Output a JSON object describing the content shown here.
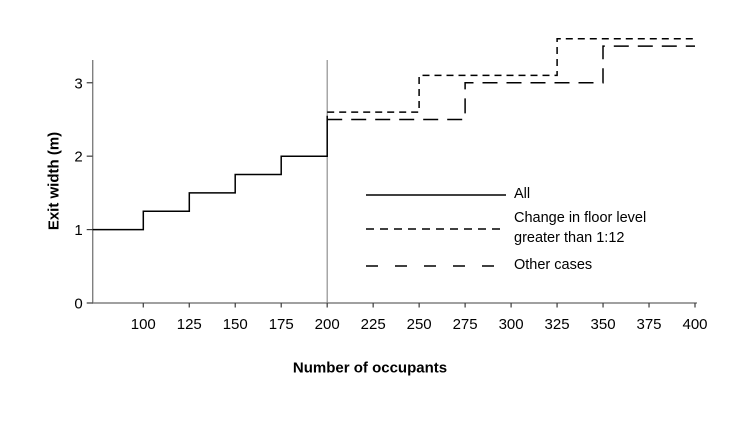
{
  "figure": {
    "background": "#ffffff",
    "axis_color": "#808080",
    "tick_color": "#3a3a3a",
    "line_color": "#000000",
    "ref_line_color": "#858585",
    "text_color": "#000000"
  },
  "chart_data": {
    "type": "line",
    "subtype": "step",
    "title": "",
    "xlabel": "Number of occupants",
    "ylabel": "Exit width (m)",
    "xlim": [
      72.5,
      400
    ],
    "ylim": [
      0,
      3.31
    ],
    "x_ticks": [
      100,
      125,
      150,
      175,
      200,
      225,
      250,
      275,
      300,
      325,
      350,
      375,
      400
    ],
    "y_ticks": [
      0,
      1,
      2,
      3
    ],
    "grid": false,
    "reference_line_x": 200,
    "legend_position": "inside-right",
    "series": [
      {
        "name": "All",
        "style": "solid",
        "points": [
          [
            72.5,
            1.0
          ],
          [
            100,
            1.0
          ],
          [
            100,
            1.25
          ],
          [
            125,
            1.25
          ],
          [
            125,
            1.5
          ],
          [
            150,
            1.5
          ],
          [
            150,
            1.75
          ],
          [
            175,
            1.75
          ],
          [
            175,
            2.0
          ],
          [
            200,
            2.0
          ],
          [
            200,
            2.55
          ]
        ]
      },
      {
        "name": "Change in floor level greater than 1:12",
        "style": "short-dash",
        "points": [
          [
            200,
            2.6
          ],
          [
            250,
            2.6
          ],
          [
            250,
            3.1
          ],
          [
            325,
            3.1
          ],
          [
            325,
            3.6
          ],
          [
            400,
            3.6
          ]
        ]
      },
      {
        "name": "Other cases",
        "style": "long-dash",
        "points": [
          [
            200,
            2.5
          ],
          [
            275,
            2.5
          ],
          [
            275,
            3.0
          ],
          [
            350,
            3.0
          ],
          [
            350,
            3.5
          ],
          [
            400,
            3.5
          ]
        ]
      }
    ]
  },
  "legend": {
    "items": [
      {
        "label": "All",
        "style": "solid"
      },
      {
        "label": "Change in floor level greater than 1:12",
        "style": "short-dash"
      },
      {
        "label": "Other cases",
        "style": "long-dash"
      }
    ]
  }
}
